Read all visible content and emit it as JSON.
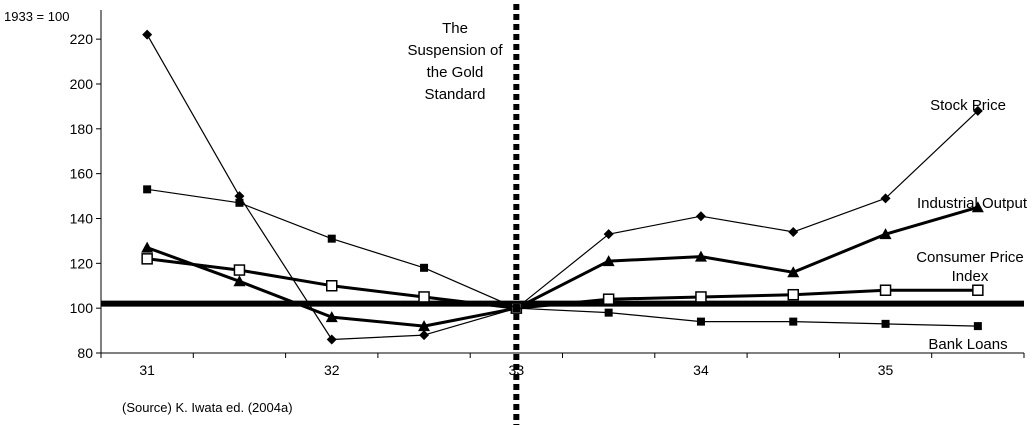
{
  "chart_data": {
    "type": "line",
    "ylabel": "1933 = 100",
    "x": [
      31,
      31.5,
      32,
      32.5,
      33,
      33.5,
      34,
      34.5,
      35,
      35.5
    ],
    "xticks": [
      "31",
      "32",
      "33",
      "34",
      "35"
    ],
    "xlim": [
      30.75,
      35.75
    ],
    "ylim": [
      80,
      233
    ],
    "yticks": [
      80,
      100,
      120,
      140,
      160,
      180,
      200,
      220
    ],
    "grid": false,
    "series": [
      {
        "name": "Stock Price",
        "marker": "diamond",
        "weight": "thin",
        "values": [
          222,
          150,
          86,
          88,
          100,
          133,
          141,
          134,
          149,
          188
        ]
      },
      {
        "name": "Industrial Output",
        "marker": "triangle",
        "weight": "bold",
        "values": [
          127,
          112,
          96,
          92,
          100,
          121,
          123,
          116,
          133,
          145
        ]
      },
      {
        "name": "Consumer Price Index",
        "marker": "open-square",
        "weight": "bold",
        "values": [
          122,
          117,
          110,
          105,
          100,
          104,
          105,
          106,
          108,
          108
        ]
      },
      {
        "name": "Bank Loans",
        "marker": "square",
        "weight": "thin",
        "values": [
          153,
          147,
          131,
          118,
          100,
          98,
          94,
          94,
          93,
          92
        ]
      }
    ],
    "series_labels": {
      "Stock Price": [
        "Stock Price"
      ],
      "Industrial Output": [
        "Industrial Output"
      ],
      "Consumer Price Index": [
        "Consumer Price",
        "Index"
      ],
      "Bank Loans": [
        "Bank Loans"
      ]
    },
    "reference_line": {
      "y": 102
    },
    "event_line": {
      "x": 33,
      "label": [
        "The",
        "Suspension of",
        "the Gold",
        "Standard"
      ]
    },
    "source": "(Source) K. Iwata ed. (2004a)"
  }
}
